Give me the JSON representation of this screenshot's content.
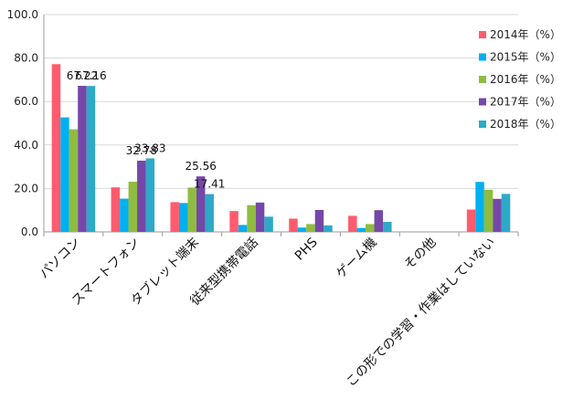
{
  "chart_data": {
    "type": "bar",
    "title": "",
    "xlabel": "",
    "ylabel": "",
    "ylim": [
      0,
      100
    ],
    "yticks": [
      "0.0",
      "20.0",
      "40.0",
      "60.0",
      "80.0",
      "100.0"
    ],
    "grid": true,
    "legend_position": "right",
    "categories": [
      "パソコン",
      "スマートフォン",
      "タブレット端末",
      "従来型携帯電話",
      "PHS",
      "ゲーム機",
      "その他",
      "この形での学習・作業はしていない"
    ],
    "series": [
      {
        "name": "2014年（%）",
        "color": "#ff5b6e",
        "values": [
          77.2,
          20.5,
          13.7,
          9.6,
          6.1,
          7.4,
          0,
          10.3
        ]
      },
      {
        "name": "2015年（%）",
        "color": "#00b0f0",
        "values": [
          52.7,
          15.3,
          13.3,
          3.2,
          2.0,
          1.8,
          0,
          23.0
        ]
      },
      {
        "name": "2016年（%）",
        "color": "#8fbc3f",
        "values": [
          47.2,
          23.1,
          20.4,
          12.3,
          3.6,
          3.6,
          0,
          19.4
        ]
      },
      {
        "name": "2017年（%）",
        "color": "#7548a8",
        "values": [
          67.22,
          32.78,
          25.56,
          13.5,
          10.1,
          10.0,
          0,
          15.2
        ]
      },
      {
        "name": "2018年（%）",
        "color": "#2ea9c8",
        "values": [
          67.16,
          33.83,
          17.41,
          7.0,
          3.0,
          4.6,
          0,
          17.5
        ]
      }
    ],
    "data_labels": [
      {
        "series": 3,
        "category": 0,
        "text": "67.22"
      },
      {
        "series": 4,
        "category": 0,
        "text": "67.16"
      },
      {
        "series": 3,
        "category": 1,
        "text": "32.78"
      },
      {
        "series": 4,
        "category": 1,
        "text": "33.83"
      },
      {
        "series": 3,
        "category": 2,
        "text": "25.56"
      },
      {
        "series": 4,
        "category": 2,
        "text": "17.41"
      }
    ]
  }
}
